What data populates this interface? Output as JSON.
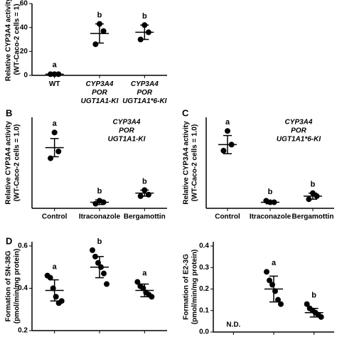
{
  "chart_data": [
    {
      "type": "dot",
      "ylabel": [
        "Relative CYP3A4 activity",
        "(WT-Caco-2 cells = 1)"
      ],
      "categories": [
        "WT",
        "CYP3A4 POR UGT1A1-KI",
        "CYP3A4 POR UGT1A1*6-KI"
      ],
      "values": [
        [
          1,
          1,
          1
        ],
        [
          43,
          37,
          26
        ],
        [
          42,
          36,
          30
        ]
      ],
      "means": [
        1,
        35,
        36
      ],
      "sds": [
        0.3,
        8,
        6
      ],
      "letters": [
        "a",
        "b",
        "b"
      ],
      "ylim": [
        0,
        60
      ],
      "yticks": [
        0,
        20,
        40,
        60
      ]
    },
    {
      "type": "dot",
      "panel": "B",
      "title": [
        "CYP3A4",
        "POR",
        "UGT1A1-KI"
      ],
      "ylabel": [
        "Relative CYP3A4 activity",
        "(WT-Caco-2 cells = 1.0)"
      ],
      "categories": [
        "Control",
        "Itraconazole",
        "Bergamottin"
      ],
      "values": [
        [
          50,
          37.5,
          33
        ],
        [
          5,
          4,
          3
        ],
        [
          12,
          9,
          8
        ]
      ],
      "means": [
        40,
        4,
        10
      ],
      "sds": [
        6,
        1.5,
        2
      ],
      "letters": [
        "a",
        "b",
        "b"
      ],
      "ylim": [
        0,
        60
      ]
    },
    {
      "type": "dot",
      "panel": "C",
      "title": [
        "CYP3A4",
        "POR",
        "UGT1A1*6-KI"
      ],
      "ylabel": [
        "Relative CYP3A4 activity",
        "(WT-Caco-2 cells = 1.0)"
      ],
      "categories": [
        "Control",
        "Itraconazole",
        "Bergamottin"
      ],
      "values": [
        [
          51,
          42,
          38
        ],
        [
          4,
          4,
          5
        ],
        [
          10,
          8,
          6
        ]
      ],
      "means": [
        42,
        4,
        8
      ],
      "sds": [
        6,
        1,
        2
      ],
      "letters": [
        "a",
        "b",
        "b"
      ],
      "ylim": [
        0,
        60
      ]
    },
    {
      "type": "dot",
      "panel": "D",
      "ylabel": [
        "Formation of SN-38G",
        "(pmol/min/mg protein)"
      ],
      "categories": [
        null,
        null,
        null
      ],
      "values": [
        [
          0.46,
          0.45,
          0.4,
          0.36,
          0.33,
          0.34
        ],
        [
          0.58,
          0.55,
          0.52,
          0.5,
          0.47,
          0.42
        ],
        [
          0.43,
          0.41,
          0.4,
          0.38,
          0.37,
          0.36
        ]
      ],
      "means": [
        0.39,
        0.5,
        0.39
      ],
      "sds": [
        0.05,
        0.05,
        0.03
      ],
      "letters": [
        "a",
        "b",
        "a"
      ],
      "ylim": [
        0.2,
        0.62
      ],
      "yticks": [
        0.2,
        0.4,
        0.6
      ]
    },
    {
      "type": "dot",
      "ylabel": [
        "Formation of E2-3G",
        "(pmol/min/mg protein)"
      ],
      "categories": [
        null,
        null,
        null
      ],
      "annotation": "N.D.",
      "values": [
        null,
        [
          0.28,
          0.24,
          0.22,
          0.19,
          0.15,
          0.13
        ],
        [
          0.13,
          0.11,
          0.1,
          0.09,
          0.08,
          0.07
        ]
      ],
      "means": [
        null,
        0.2,
        0.09
      ],
      "sds": [
        null,
        0.06,
        0.02
      ],
      "letters": [
        null,
        "a",
        "b"
      ],
      "ylim": [
        0,
        0.42
      ],
      "yticks": [
        {
          "value": 0,
          "label": "0.0"
        },
        0.1,
        0.2,
        0.3,
        0.4
      ]
    }
  ]
}
